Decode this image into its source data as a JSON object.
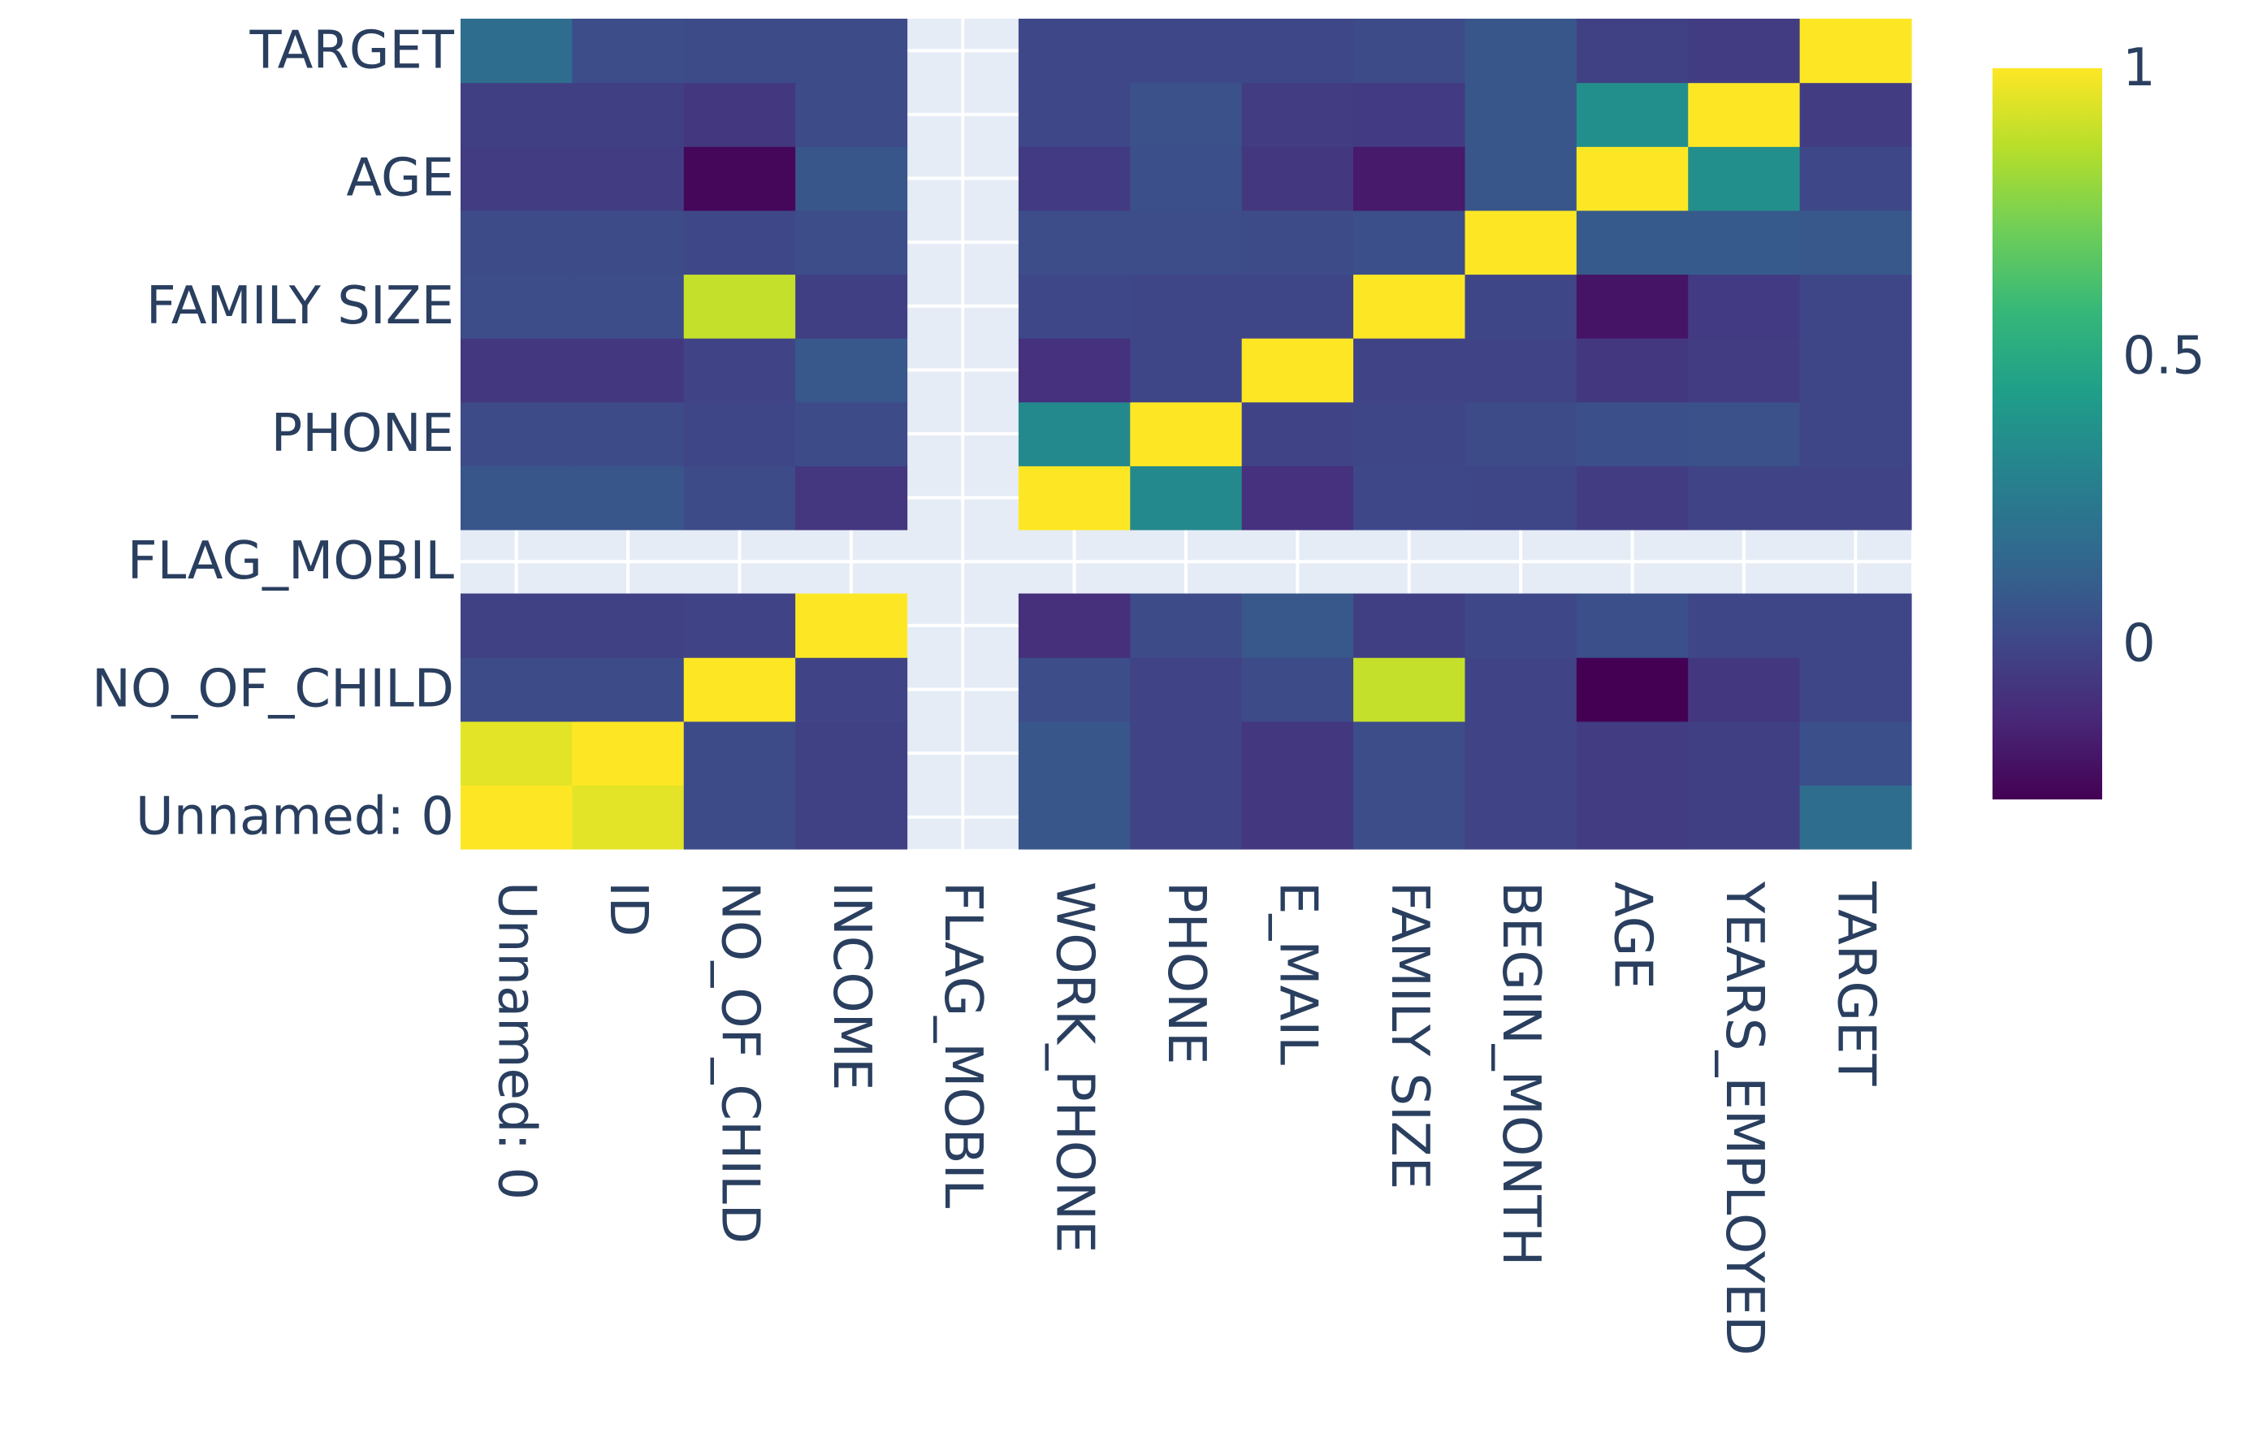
{
  "chart_data": {
    "type": "heatmap",
    "title": "",
    "xlabel": "",
    "ylabel": "",
    "x_labels": [
      "Unnamed: 0",
      "ID",
      "NO_OF_CHILD",
      "INCOME",
      "FLAG_MOBIL",
      "WORK_PHONE",
      "PHONE",
      "E_MAIL",
      "FAMILY SIZE",
      "BEGIN_MONTH",
      "AGE",
      "YEARS_EMPLOYED",
      "TARGET"
    ],
    "y_labels": [
      "Unnamed: 0",
      "ID",
      "NO_OF_CHILD",
      "INCOME",
      "FLAG_MOBIL",
      "WORK_PHONE",
      "PHONE",
      "E_MAIL",
      "FAMILY SIZE",
      "BEGIN_MONTH",
      "AGE",
      "YEARS_EMPLOYED",
      "TARGET"
    ],
    "y_tick_labels_shown": [
      "Unnamed: 0",
      "NO_OF_CHILD",
      "FLAG_MOBIL",
      "PHONE",
      "FAMILY SIZE",
      "AGE",
      "TARGET"
    ],
    "z": [
      [
        1.0,
        0.95,
        0.02,
        -0.02,
        null,
        0.07,
        -0.01,
        -0.06,
        0.03,
        -0.01,
        -0.04,
        -0.03,
        0.18
      ],
      [
        0.95,
        1.0,
        0.02,
        -0.02,
        null,
        0.07,
        -0.01,
        -0.06,
        0.03,
        -0.01,
        -0.04,
        -0.03,
        0.04
      ],
      [
        0.02,
        0.02,
        1.0,
        -0.01,
        null,
        0.03,
        -0.01,
        0.02,
        0.89,
        -0.01,
        -0.27,
        -0.06,
        0.0
      ],
      [
        -0.02,
        -0.02,
        -0.01,
        1.0,
        null,
        -0.1,
        0.02,
        0.08,
        -0.03,
        0.01,
        0.04,
        0.0,
        0.0
      ],
      [
        null,
        null,
        null,
        null,
        null,
        null,
        null,
        null,
        null,
        null,
        null,
        null,
        null
      ],
      [
        0.07,
        0.07,
        0.02,
        -0.07,
        null,
        1.0,
        0.33,
        -0.09,
        0.01,
        0.0,
        -0.04,
        -0.01,
        -0.01
      ],
      [
        0.02,
        0.02,
        0.0,
        0.02,
        null,
        0.33,
        1.0,
        -0.01,
        0.0,
        0.02,
        0.04,
        0.05,
        0.0
      ],
      [
        -0.06,
        -0.06,
        -0.01,
        0.08,
        null,
        -0.09,
        0.0,
        1.0,
        -0.01,
        -0.01,
        -0.06,
        -0.04,
        0.0
      ],
      [
        0.03,
        0.03,
        0.89,
        -0.03,
        null,
        0.01,
        0.0,
        0.0,
        1.0,
        0.0,
        -0.2,
        -0.05,
        0.0
      ],
      [
        0.02,
        0.02,
        0.01,
        0.03,
        null,
        0.03,
        0.03,
        0.02,
        0.04,
        1.0,
        0.09,
        0.09,
        0.08
      ],
      [
        -0.04,
        -0.04,
        -0.25,
        0.07,
        null,
        -0.05,
        0.04,
        -0.06,
        -0.18,
        0.07,
        1.0,
        0.36,
        0.01
      ],
      [
        -0.03,
        -0.03,
        -0.06,
        0.02,
        null,
        0.01,
        0.05,
        -0.04,
        -0.05,
        0.07,
        0.36,
        1.0,
        -0.04
      ],
      [
        0.18,
        0.03,
        0.02,
        0.02,
        null,
        0.01,
        0.01,
        0.01,
        0.02,
        0.07,
        -0.02,
        -0.04,
        1.0
      ]
    ],
    "zmin": -0.27,
    "zmax": 1.0,
    "colorscale": "viridis",
    "colorbar": {
      "ticks": [
        0,
        0.5,
        1
      ],
      "tick_labels": [
        "0",
        "0.5",
        "1"
      ]
    },
    "grid": true,
    "legend": "colorbar-right"
  },
  "colors": {
    "text": "#2a3f5f",
    "plot_background": "#e5ecf6",
    "grid": "#ffffff",
    "viridis": [
      "#440154",
      "#482878",
      "#3e4989",
      "#31688e",
      "#26828e",
      "#1f9e89",
      "#35b779",
      "#6ece58",
      "#b5de2b",
      "#fde725"
    ]
  }
}
